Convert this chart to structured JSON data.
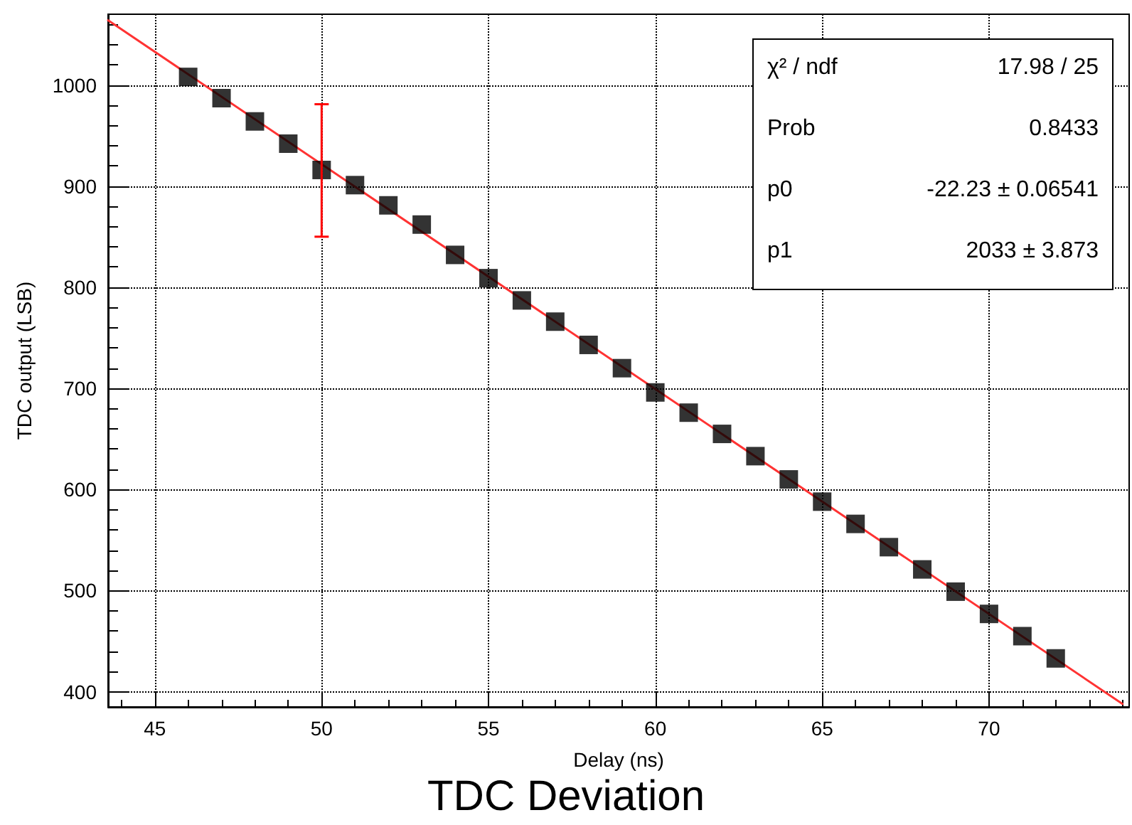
{
  "chart_data": {
    "type": "scatter",
    "title": "TDC Deviation",
    "xlabel": "Delay (ns)",
    "ylabel": "TDC output (LSB)",
    "x": [
      46,
      47,
      48,
      49,
      50,
      51,
      52,
      53,
      54,
      55,
      56,
      57,
      58,
      59,
      60,
      61,
      62,
      63,
      64,
      65,
      66,
      67,
      68,
      69,
      70,
      71,
      72
    ],
    "series": [
      {
        "type": "scatter",
        "color": "#000000",
        "marker": "square",
        "values": [
          1008,
          987,
          964,
          942,
          916,
          901,
          881,
          862,
          832,
          809,
          787,
          766,
          743,
          720,
          696,
          676,
          655,
          633,
          610,
          588,
          566,
          543,
          521,
          499,
          477,
          455,
          433
        ],
        "errors": [
          null,
          null,
          null,
          null,
          [
            850,
            981
          ],
          null,
          null,
          null,
          null,
          null,
          null,
          null,
          null,
          null,
          null,
          null,
          null,
          null,
          null,
          null,
          null,
          null,
          null,
          null,
          null,
          null,
          null
        ]
      },
      {
        "type": "line",
        "color": "#ff3333",
        "marker": "none",
        "line_style": "solid",
        "x": [
          43.6,
          74.0
        ],
        "values": [
          1064,
          388
        ]
      }
    ],
    "annotations": [
      "χ² / ndf",
      "17.98 / 25",
      "Prob",
      "0.8433",
      "p0",
      "-22.23 ± 0.06541",
      "p1",
      "2033 ± 3.873"
    ],
    "xlim": [
      43.6,
      74.2
    ],
    "xticks": [
      45,
      50,
      55,
      60,
      65,
      70
    ],
    "ylim": [
      385,
      1070
    ],
    "yticks": [
      400,
      500,
      600,
      700,
      800,
      900,
      1000
    ],
    "grid": true
  }
}
